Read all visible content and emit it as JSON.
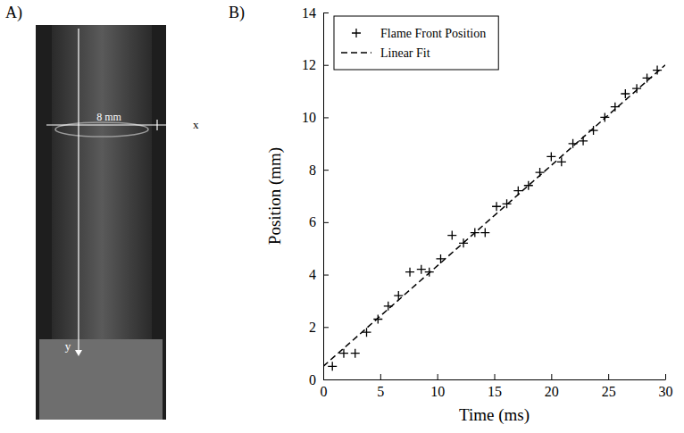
{
  "panel_labels": [
    "A)",
    "B)"
  ],
  "photo_panel": {
    "width_label": "8 mm",
    "x_axis_label": "x",
    "y_axis_label": "y"
  },
  "chart_data": {
    "type": "scatter",
    "x_label": "Time (ms)",
    "y_label": "Position (mm)",
    "xlim": [
      0,
      30
    ],
    "xticks": [
      0,
      5,
      10,
      15,
      20,
      25,
      30
    ],
    "ylim": [
      0,
      14
    ],
    "yticks": [
      0,
      2,
      4,
      6,
      8,
      10,
      12,
      14
    ],
    "grid": false,
    "legend": "top-left",
    "series": [
      {
        "name": "Flame Front Position",
        "type": "scatter",
        "marker": "plus",
        "color": "#000000",
        "x": [
          0.8,
          1.8,
          2.8,
          3.8,
          4.8,
          5.7,
          6.6,
          7.6,
          8.6,
          9.3,
          10.3,
          11.3,
          12.3,
          13.3,
          14.2,
          15.2,
          16.1,
          17.1,
          18.0,
          19.0,
          20.0,
          20.9,
          21.9,
          22.8,
          23.7,
          24.7,
          25.6,
          26.5,
          27.5,
          28.4,
          29.3
        ],
        "values": [
          0.5,
          1.0,
          1.0,
          1.8,
          2.3,
          2.8,
          3.2,
          4.1,
          4.2,
          4.1,
          4.6,
          5.5,
          5.2,
          5.6,
          5.6,
          6.6,
          6.7,
          7.2,
          7.4,
          7.9,
          8.5,
          8.3,
          9.0,
          9.1,
          9.5,
          10.0,
          10.4,
          10.9,
          11.1,
          11.5,
          11.8
        ]
      },
      {
        "name": "Linear Fit",
        "type": "line",
        "line_style": "dashed",
        "color": "#000000",
        "x": [
          0,
          30
        ],
        "values": [
          0.5,
          12.0
        ]
      }
    ]
  }
}
